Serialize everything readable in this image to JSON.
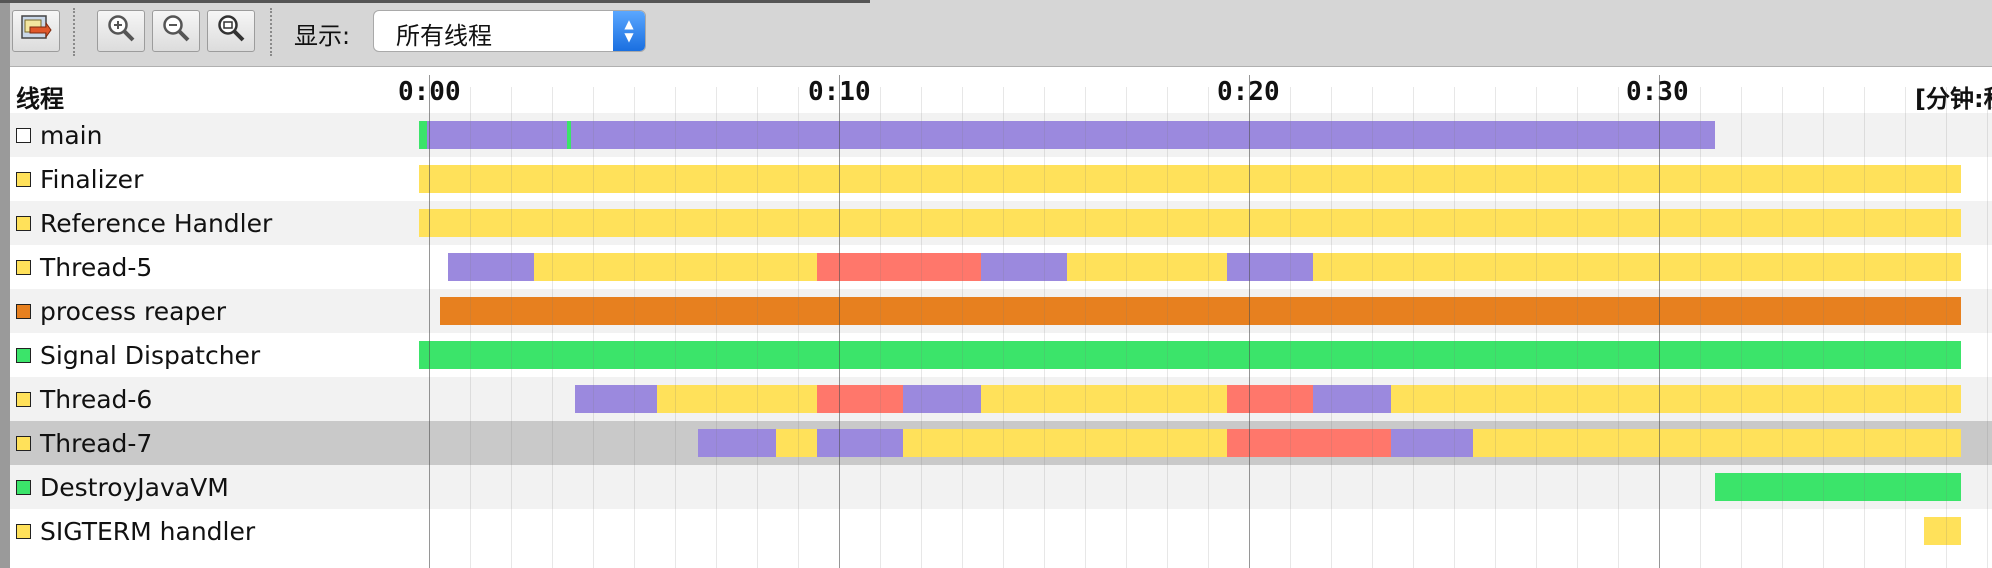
{
  "toolbar": {
    "display_label": "显示:",
    "select_value": "所有线程"
  },
  "icons": [
    "export-icon",
    "zoom-in-icon",
    "zoom-out-icon",
    "zoom-fit-icon"
  ],
  "timeline": {
    "header_threads": "线程",
    "unit_label": "[分钟:秒]",
    "ticks": [
      "0:00",
      "0:10",
      "0:20",
      "0:30"
    ]
  },
  "state_colors": {
    "running": "#3be46a",
    "sleeping": "#9b89de",
    "wait": "#ffe15a",
    "park": "#e7801f",
    "monitor": "#ff776b"
  },
  "threads": [
    {
      "name": "main",
      "swatch": "#ffffff",
      "segments": [
        {
          "start": 0.0,
          "end": 0.2,
          "state": "running"
        },
        {
          "start": 0.2,
          "end": 3.6,
          "state": "sleeping"
        },
        {
          "start": 3.6,
          "end": 3.7,
          "state": "running"
        },
        {
          "start": 3.7,
          "end": 31.6,
          "state": "sleeping"
        }
      ]
    },
    {
      "name": "Finalizer",
      "swatch": "#ffe15a",
      "segments": [
        {
          "start": 0.0,
          "end": 37.6,
          "state": "wait"
        }
      ]
    },
    {
      "name": "Reference Handler",
      "swatch": "#ffe15a",
      "segments": [
        {
          "start": 0.0,
          "end": 37.6,
          "state": "wait"
        }
      ]
    },
    {
      "name": "Thread-5",
      "swatch": "#ffe15a",
      "segments": [
        {
          "start": 0.7,
          "end": 2.8,
          "state": "sleeping"
        },
        {
          "start": 2.8,
          "end": 9.7,
          "state": "wait"
        },
        {
          "start": 9.7,
          "end": 13.7,
          "state": "monitor"
        },
        {
          "start": 13.7,
          "end": 15.8,
          "state": "sleeping"
        },
        {
          "start": 15.8,
          "end": 19.7,
          "state": "wait"
        },
        {
          "start": 19.7,
          "end": 21.8,
          "state": "sleeping"
        },
        {
          "start": 21.8,
          "end": 37.6,
          "state": "wait"
        }
      ]
    },
    {
      "name": "process reaper",
      "swatch": "#e7801f",
      "segments": [
        {
          "start": 0.5,
          "end": 37.6,
          "state": "park"
        }
      ]
    },
    {
      "name": "Signal Dispatcher",
      "swatch": "#3be46a",
      "segments": [
        {
          "start": 0.0,
          "end": 37.6,
          "state": "running"
        }
      ]
    },
    {
      "name": "Thread-6",
      "swatch": "#ffe15a",
      "segments": [
        {
          "start": 3.8,
          "end": 5.8,
          "state": "sleeping"
        },
        {
          "start": 5.8,
          "end": 9.7,
          "state": "wait"
        },
        {
          "start": 9.7,
          "end": 11.8,
          "state": "monitor"
        },
        {
          "start": 11.8,
          "end": 13.7,
          "state": "sleeping"
        },
        {
          "start": 13.7,
          "end": 19.7,
          "state": "wait"
        },
        {
          "start": 19.7,
          "end": 21.8,
          "state": "monitor"
        },
        {
          "start": 21.8,
          "end": 23.7,
          "state": "sleeping"
        },
        {
          "start": 23.7,
          "end": 37.6,
          "state": "wait"
        }
      ]
    },
    {
      "name": "Thread-7",
      "swatch": "#ffe15a",
      "selected": true,
      "segments": [
        {
          "start": 6.8,
          "end": 8.7,
          "state": "sleeping"
        },
        {
          "start": 8.7,
          "end": 9.7,
          "state": "wait"
        },
        {
          "start": 9.7,
          "end": 11.8,
          "state": "sleeping"
        },
        {
          "start": 11.8,
          "end": 19.7,
          "state": "wait"
        },
        {
          "start": 19.7,
          "end": 23.7,
          "state": "monitor"
        },
        {
          "start": 23.7,
          "end": 25.7,
          "state": "sleeping"
        },
        {
          "start": 25.7,
          "end": 37.6,
          "state": "wait"
        }
      ]
    },
    {
      "name": "DestroyJavaVM",
      "swatch": "#3be46a",
      "segments": [
        {
          "start": 31.6,
          "end": 37.6,
          "state": "running"
        }
      ]
    },
    {
      "name": "SIGTERM handler",
      "swatch": "#ffe15a",
      "segments": [
        {
          "start": 36.7,
          "end": 37.6,
          "state": "wait"
        }
      ]
    }
  ]
}
